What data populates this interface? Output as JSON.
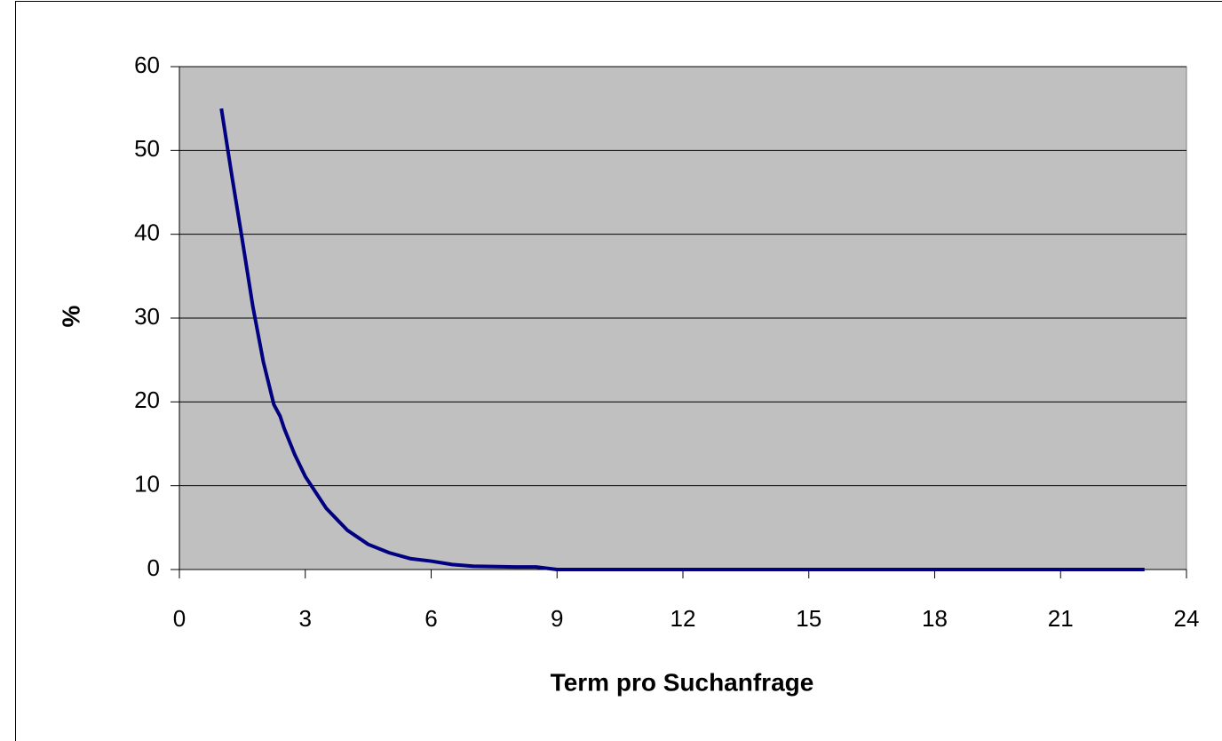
{
  "chart_data": {
    "type": "line",
    "x_label": "Term pro Suchanfrage",
    "y_label": "%",
    "series": [
      {
        "name": "Term pro Suchanfrage",
        "color": "#000080",
        "x": [
          1,
          1.25,
          1.5,
          1.75,
          2,
          2.25,
          2.4,
          2.5,
          2.75,
          3,
          3.5,
          4,
          4.5,
          5,
          5.5,
          6,
          6.5,
          7,
          8,
          8.5,
          9,
          10,
          11,
          12,
          13,
          14,
          15,
          16,
          17,
          18,
          19,
          20,
          21,
          22,
          23
        ],
        "values": [
          55,
          47,
          39.3,
          31.4,
          24.8,
          19.7,
          18.3,
          16.8,
          13.7,
          11.1,
          7.3,
          4.7,
          3,
          2,
          1.3,
          1,
          0.6,
          0.4,
          0.3,
          0.3,
          0,
          0,
          0,
          0,
          0,
          0,
          0,
          0,
          0,
          0,
          0,
          0,
          0,
          0,
          0
        ]
      }
    ],
    "xlim": [
      0,
      24
    ],
    "xticks": [
      0,
      3,
      6,
      9,
      12,
      15,
      18,
      21,
      24
    ],
    "ylim": [
      0,
      60
    ],
    "yticks": [
      0,
      10,
      20,
      30,
      40,
      50,
      60
    ],
    "grid": true,
    "plot_background": "#c0c0c0"
  }
}
